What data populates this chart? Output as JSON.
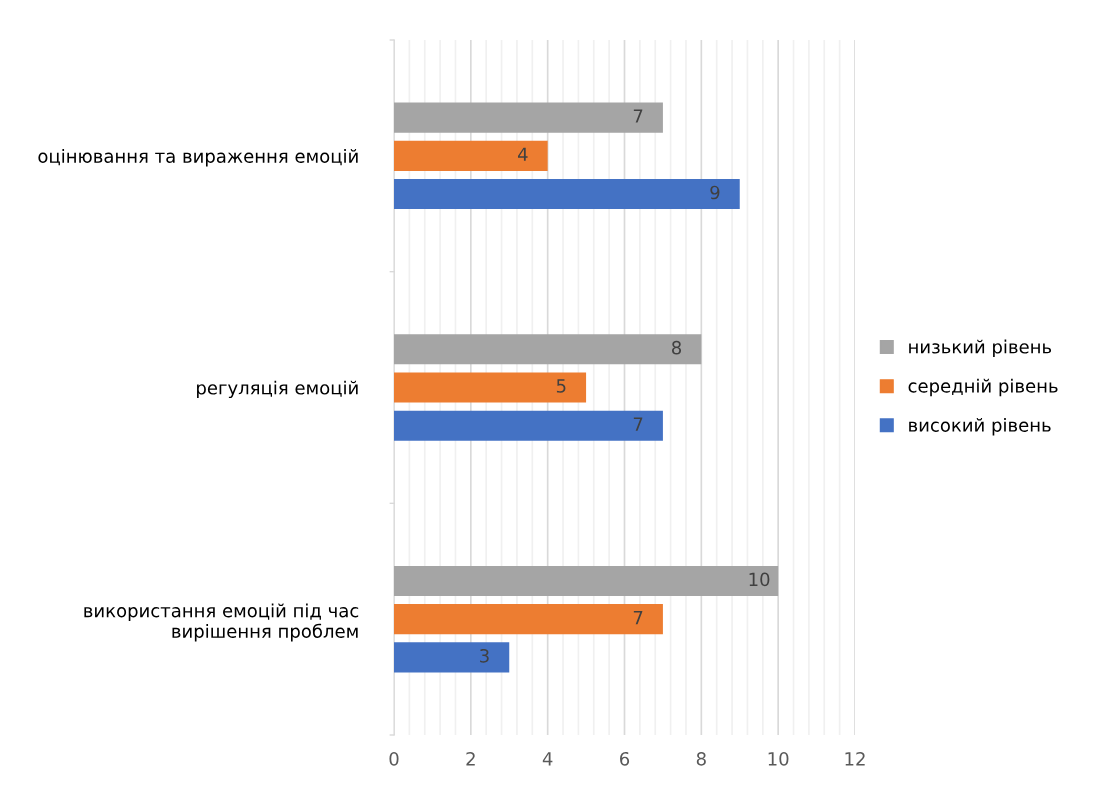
{
  "chart_data": {
    "type": "bar",
    "orientation": "horizontal",
    "categories": [
      "оцінювання та вираження емоцій",
      "регуляція емоцій",
      "використання емоцій під час вирішення проблем"
    ],
    "series": [
      {
        "name": "низький рівень",
        "color": "#a5a5a5",
        "values": [
          7,
          8,
          10
        ]
      },
      {
        "name": "середній рівень",
        "color": "#ed7d31",
        "values": [
          4,
          5,
          7
        ]
      },
      {
        "name": "високий рівень",
        "color": "#4472c4",
        "values": [
          9,
          7,
          3
        ]
      }
    ],
    "xlim": [
      0,
      12
    ],
    "xticks": [
      0,
      {
        "value": 0.4,
        "label": null
      },
      {
        "value": 0.8,
        "label": null
      },
      {
        "value": 1.2,
        "label": null
      },
      {
        "value": 1.6,
        "label": null
      },
      2,
      {
        "value": 2.4,
        "label": null
      },
      {
        "value": 2.8,
        "label": null
      },
      {
        "value": 3.2,
        "label": null
      },
      {
        "value": 3.6,
        "label": null
      },
      4,
      {
        "value": 4.4,
        "label": null
      },
      {
        "value": 4.8,
        "label": null
      },
      {
        "value": 5.2,
        "label": null
      },
      {
        "value": 5.6,
        "label": null
      },
      6,
      {
        "value": 6.4,
        "label": null
      },
      {
        "value": 6.8,
        "label": null
      },
      {
        "value": 7.2,
        "label": null
      },
      {
        "value": 7.6,
        "label": null
      },
      8,
      {
        "value": 8.4,
        "label": null
      },
      {
        "value": 8.8,
        "label": null
      },
      {
        "value": 9.2,
        "label": null
      },
      {
        "value": 9.6,
        "label": null
      },
      10,
      {
        "value": 10.4,
        "label": null
      },
      {
        "value": 10.8,
        "label": null
      },
      {
        "value": 11.2,
        "label": null
      },
      {
        "value": 11.6,
        "label": null
      },
      12
    ],
    "grid": "x",
    "legend": "right",
    "data_labels": true
  }
}
